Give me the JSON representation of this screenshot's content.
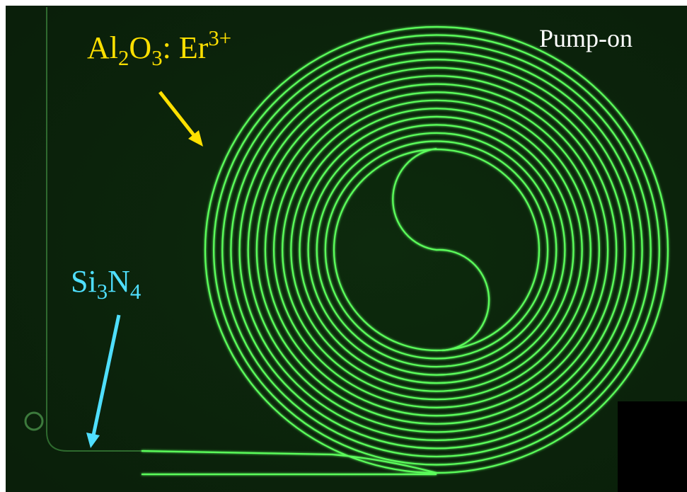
{
  "labels": {
    "pump_state": "Pump-on",
    "top_material": [
      "Al",
      "2",
      "O",
      "3",
      ": Er",
      "3+"
    ],
    "bottom_material": [
      "Si",
      "3",
      "N",
      "4"
    ]
  }
}
